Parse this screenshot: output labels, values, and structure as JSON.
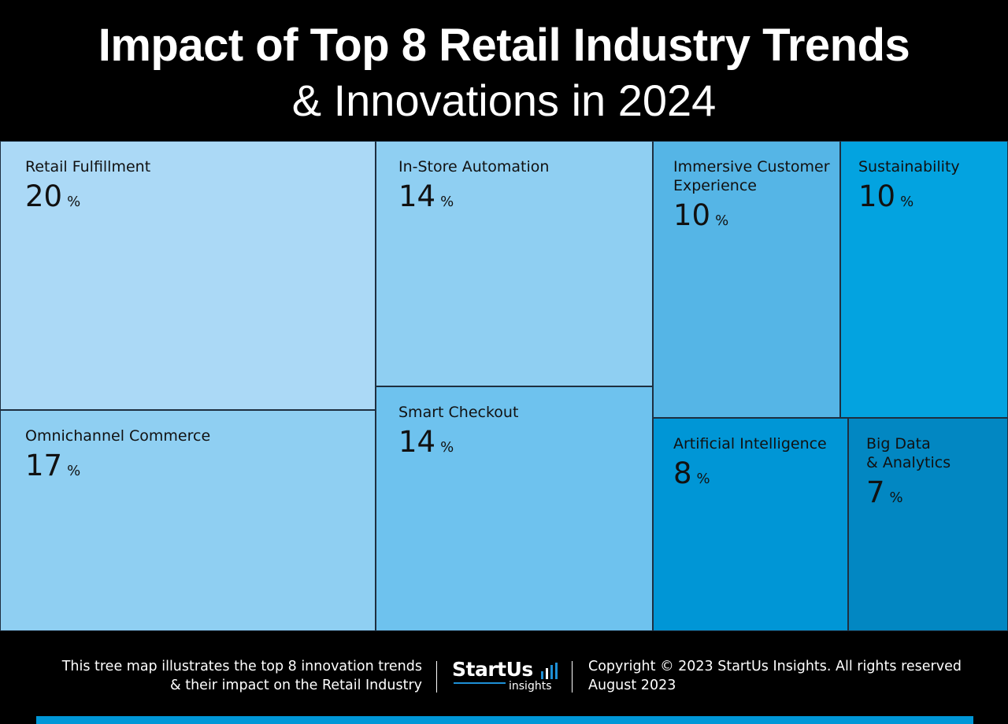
{
  "header": {
    "title_line1": "Impact of Top 8 Retail Industry Trends",
    "title_line2": "& Innovations in 2024"
  },
  "chart_data": {
    "type": "treemap",
    "unit": "%",
    "items": [
      {
        "label": "Retail Fulfillment",
        "value": 20,
        "color": "#abd9f6"
      },
      {
        "label": "Omnichannel Commerce",
        "value": 17,
        "color": "#8fcff2"
      },
      {
        "label": "In-Store Automation",
        "value": 14,
        "color": "#8fcff2"
      },
      {
        "label": "Smart Checkout",
        "value": 14,
        "color": "#6ec2ee"
      },
      {
        "label": "Immersive Customer\nExperience",
        "value": 10,
        "color": "#55b5e6"
      },
      {
        "label": "Sustainability",
        "value": 10,
        "color": "#03a3e0"
      },
      {
        "label": "Artificial Intelligence",
        "value": 8,
        "color": "#0096d6"
      },
      {
        "label": "Big Data\n& Analytics",
        "value": 7,
        "color": "#0287c2"
      }
    ]
  },
  "footer": {
    "description_line1": "This tree map illustrates the top 8 innovation trends",
    "description_line2": "& their impact on the Retail Industry",
    "logo_main": "StartUs",
    "logo_sub": "insights",
    "copyright": "Copyright © 2023 StartUs Insights. All rights reserved",
    "date": "August 2023"
  }
}
